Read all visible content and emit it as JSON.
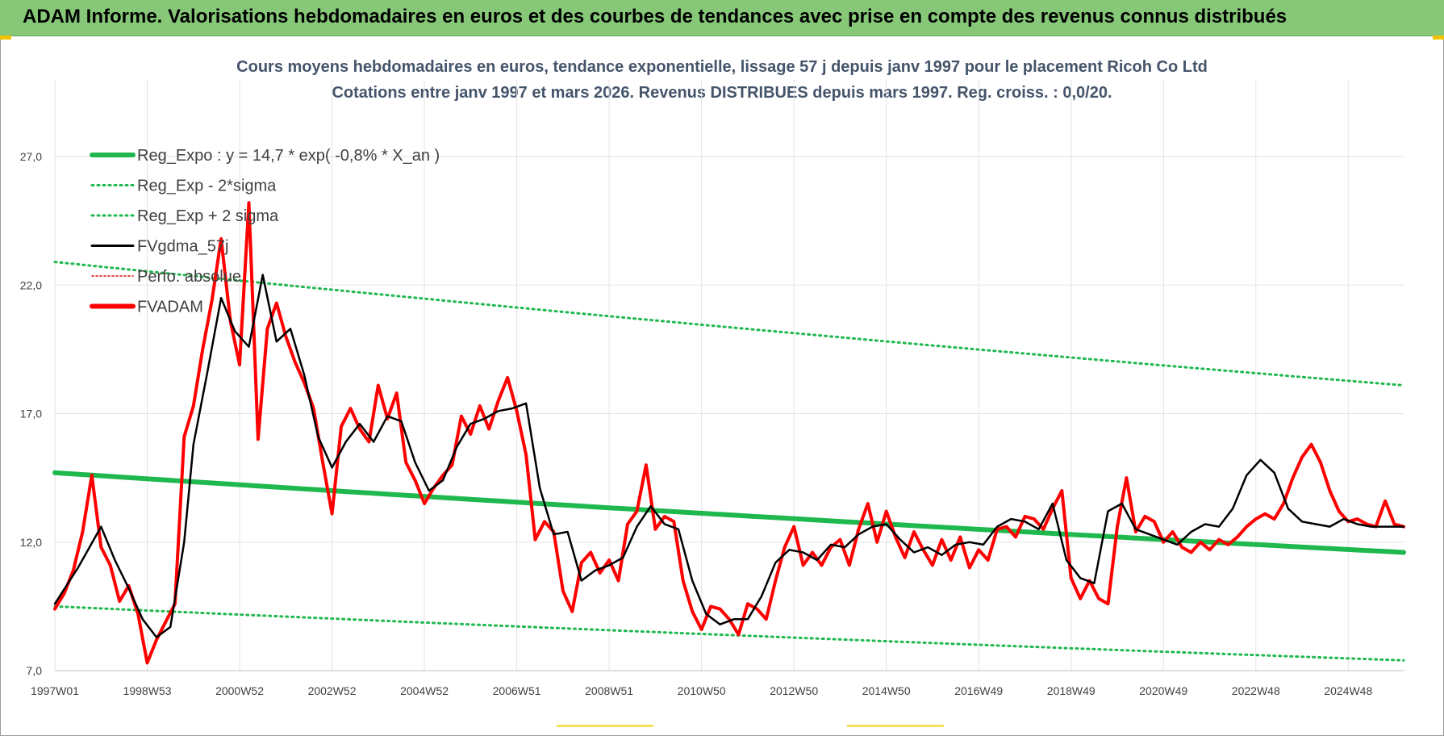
{
  "header": {
    "banner_title": "ADAM Informe. Valorisations hebdomadaires en euros et des courbes de tendances avec prise en compte des revenus connus distribués"
  },
  "chart_data": {
    "type": "line",
    "title_line1": "Cours moyens hebdomadaires en euros, tendance exponentielle, lissage 57 j depuis janv 1997  pour le placement Ricoh Co Ltd",
    "title_line2": "Cotations entre janv 1997 et mars 2026. Revenus DISTRIBUES depuis mars 1997.  Reg. croiss. : 0,0/20.",
    "xlabel": "",
    "ylabel": "",
    "ylim": [
      7.0,
      27.0
    ],
    "xlim": [
      1997.0,
      2026.2
    ],
    "y_ticks": [
      "7,0",
      "12,0",
      "17,0",
      "22,0",
      "27,0"
    ],
    "y_tick_values": [
      7,
      12,
      17,
      22,
      27
    ],
    "x_ticks": [
      "1997W01",
      "1998W53",
      "2000W52",
      "2002W52",
      "2004W52",
      "2006W51",
      "2008W51",
      "2010W50",
      "2012W50",
      "2014W50",
      "2016W49",
      "2018W49",
      "2020W49",
      "2022W48",
      "2024W48"
    ],
    "x_tick_values": [
      1997.0,
      1999.0,
      2001.0,
      2003.0,
      2005.0,
      2007.0,
      2009.0,
      2011.0,
      2013.0,
      2015.0,
      2017.0,
      2019.0,
      2021.0,
      2023.0,
      2025.0
    ],
    "grid": true,
    "legend_position": "top-left",
    "legend": [
      {
        "label": "Reg_Expo : y = 14,7 * exp( -0,8% *  X_an )",
        "color": "#1fb84e",
        "style": "solid-thick"
      },
      {
        "label": "Reg_Exp - 2*sigma",
        "color": "#1fb84e",
        "style": "dotted"
      },
      {
        "label": "Reg_Exp + 2 sigma",
        "color": "#1fb84e",
        "style": "dotted"
      },
      {
        "label": "FVgdma_57j",
        "color": "#000000",
        "style": "solid"
      },
      {
        "label": "Perfo. absolue",
        "color": "#e00000",
        "style": "dotted-thin"
      },
      {
        "label": "FVADAM",
        "color": "#ff0000",
        "style": "solid-thick"
      }
    ],
    "colors": {
      "regression": "#1fb84e",
      "smoothed": "#000000",
      "fvadam": "#ff0000",
      "grid": "#e3e3e3",
      "title": "#44546a"
    },
    "series": [
      {
        "name": "Reg_Expo : y = 14,7 * exp( -0,8% *  X_an )",
        "x": [
          1997.0,
          2026.2
        ],
        "y": [
          14.7,
          11.6
        ]
      },
      {
        "name": "Reg_Exp - 2*sigma",
        "x": [
          1997.0,
          2026.2
        ],
        "y": [
          9.5,
          7.4
        ]
      },
      {
        "name": "Reg_Exp + 2 sigma",
        "x": [
          1997.0,
          2026.2
        ],
        "y": [
          22.9,
          18.1
        ]
      },
      {
        "name": "FVgdma_57j",
        "x": [
          1997.0,
          1997.5,
          1998.0,
          1998.3,
          1998.6,
          1998.9,
          1999.2,
          1999.5,
          1999.8,
          2000.0,
          2000.3,
          2000.6,
          2000.9,
          2001.2,
          2001.5,
          2001.8,
          2002.1,
          2002.4,
          2002.7,
          2003.0,
          2003.3,
          2003.6,
          2003.9,
          2004.2,
          2004.5,
          2004.8,
          2005.1,
          2005.4,
          2005.7,
          2006.0,
          2006.3,
          2006.6,
          2006.9,
          2007.2,
          2007.5,
          2007.8,
          2008.1,
          2008.4,
          2008.7,
          2009.0,
          2009.3,
          2009.6,
          2009.9,
          2010.2,
          2010.5,
          2010.8,
          2011.1,
          2011.4,
          2011.7,
          2012.0,
          2012.3,
          2012.6,
          2012.9,
          2013.2,
          2013.5,
          2013.8,
          2014.1,
          2014.4,
          2014.7,
          2015.0,
          2015.3,
          2015.6,
          2015.9,
          2016.2,
          2016.5,
          2016.8,
          2017.1,
          2017.4,
          2017.7,
          2018.0,
          2018.3,
          2018.6,
          2018.9,
          2019.2,
          2019.5,
          2019.8,
          2020.1,
          2020.4,
          2020.7,
          2021.0,
          2021.3,
          2021.6,
          2021.9,
          2022.2,
          2022.5,
          2022.8,
          2023.1,
          2023.4,
          2023.7,
          2024.0,
          2024.3,
          2024.6,
          2024.9,
          2025.2,
          2025.5,
          2025.8,
          2026.2
        ],
        "y": [
          9.6,
          11.0,
          12.6,
          11.3,
          10.2,
          9.0,
          8.3,
          8.7,
          12.0,
          15.8,
          18.6,
          21.5,
          20.2,
          19.6,
          22.4,
          19.8,
          20.3,
          18.5,
          16.1,
          14.9,
          15.9,
          16.6,
          15.9,
          16.9,
          16.7,
          15.1,
          14.0,
          14.4,
          15.7,
          16.6,
          16.8,
          17.1,
          17.2,
          17.4,
          14.1,
          12.3,
          12.4,
          10.5,
          10.9,
          11.1,
          11.4,
          12.6,
          13.4,
          12.7,
          12.5,
          10.5,
          9.2,
          8.8,
          9.0,
          9.0,
          9.9,
          11.2,
          11.7,
          11.6,
          11.3,
          11.9,
          11.8,
          12.3,
          12.6,
          12.7,
          12.1,
          11.6,
          11.8,
          11.5,
          11.9,
          12.0,
          11.9,
          12.6,
          12.9,
          12.8,
          12.5,
          13.5,
          11.3,
          10.6,
          10.4,
          13.2,
          13.5,
          12.5,
          12.3,
          12.1,
          11.9,
          12.4,
          12.7,
          12.6,
          13.3,
          14.6,
          15.2,
          14.7,
          13.3,
          12.8,
          12.7,
          12.6,
          12.9,
          12.7,
          12.6,
          12.6,
          12.6
        ]
      },
      {
        "name": "FVADAM",
        "x": [
          1997.0,
          1997.2,
          1997.4,
          1997.6,
          1997.8,
          1998.0,
          1998.2,
          1998.4,
          1998.6,
          1998.8,
          1999.0,
          1999.2,
          1999.4,
          1999.6,
          1999.8,
          2000.0,
          2000.2,
          2000.4,
          2000.6,
          2000.8,
          2001.0,
          2001.2,
          2001.4,
          2001.6,
          2001.8,
          2002.0,
          2002.2,
          2002.4,
          2002.6,
          2002.8,
          2003.0,
          2003.2,
          2003.4,
          2003.6,
          2003.8,
          2004.0,
          2004.2,
          2004.4,
          2004.6,
          2004.8,
          2005.0,
          2005.2,
          2005.4,
          2005.6,
          2005.8,
          2006.0,
          2006.2,
          2006.4,
          2006.6,
          2006.8,
          2007.0,
          2007.2,
          2007.4,
          2007.6,
          2007.8,
          2008.0,
          2008.2,
          2008.4,
          2008.6,
          2008.8,
          2009.0,
          2009.2,
          2009.4,
          2009.6,
          2009.8,
          2010.0,
          2010.2,
          2010.4,
          2010.6,
          2010.8,
          2011.0,
          2011.2,
          2011.4,
          2011.6,
          2011.8,
          2012.0,
          2012.2,
          2012.4,
          2012.6,
          2012.8,
          2013.0,
          2013.2,
          2013.4,
          2013.6,
          2013.8,
          2014.0,
          2014.2,
          2014.4,
          2014.6,
          2014.8,
          2015.0,
          2015.2,
          2015.4,
          2015.6,
          2015.8,
          2016.0,
          2016.2,
          2016.4,
          2016.6,
          2016.8,
          2017.0,
          2017.2,
          2017.4,
          2017.6,
          2017.8,
          2018.0,
          2018.2,
          2018.4,
          2018.6,
          2018.8,
          2019.0,
          2019.2,
          2019.4,
          2019.6,
          2019.8,
          2020.0,
          2020.2,
          2020.4,
          2020.6,
          2020.8,
          2021.0,
          2021.2,
          2021.4,
          2021.6,
          2021.8,
          2022.0,
          2022.2,
          2022.4,
          2022.6,
          2022.8,
          2023.0,
          2023.2,
          2023.4,
          2023.6,
          2023.8,
          2024.0,
          2024.2,
          2024.4,
          2024.6,
          2024.8,
          2025.0,
          2025.2,
          2025.4,
          2025.6,
          2025.8,
          2026.0,
          2026.2
        ],
        "y": [
          9.4,
          10.0,
          10.9,
          12.4,
          14.6,
          11.8,
          11.1,
          9.7,
          10.3,
          9.2,
          7.3,
          8.2,
          8.9,
          9.6,
          16.1,
          17.3,
          19.5,
          21.4,
          23.8,
          20.6,
          18.9,
          25.2,
          16.0,
          20.3,
          21.3,
          20.0,
          19.0,
          18.2,
          17.2,
          15.1,
          13.1,
          16.5,
          17.2,
          16.4,
          15.9,
          18.1,
          16.8,
          17.8,
          15.1,
          14.4,
          13.5,
          14.1,
          14.6,
          15.0,
          16.9,
          16.2,
          17.3,
          16.4,
          17.5,
          18.4,
          17.1,
          15.4,
          12.1,
          12.8,
          12.4,
          10.1,
          9.3,
          11.2,
          11.6,
          10.8,
          11.3,
          10.5,
          12.7,
          13.2,
          15.0,
          12.5,
          13.0,
          12.8,
          10.5,
          9.3,
          8.6,
          9.5,
          9.4,
          9.0,
          8.4,
          9.6,
          9.4,
          9.0,
          10.5,
          11.8,
          12.6,
          11.1,
          11.6,
          11.1,
          11.8,
          12.1,
          11.1,
          12.5,
          13.5,
          12.0,
          13.2,
          12.2,
          11.4,
          12.4,
          11.7,
          11.1,
          12.1,
          11.3,
          12.2,
          11.0,
          11.7,
          11.3,
          12.5,
          12.6,
          12.2,
          13.0,
          12.9,
          12.5,
          13.3,
          14.0,
          10.6,
          9.8,
          10.5,
          9.8,
          9.6,
          12.6,
          14.5,
          12.4,
          13.0,
          12.8,
          12.0,
          12.4,
          11.8,
          11.6,
          12.0,
          11.7,
          12.1,
          11.9,
          12.2,
          12.6,
          12.9,
          13.1,
          12.9,
          13.5,
          14.5,
          15.3,
          15.8,
          15.1,
          14.0,
          13.2,
          12.8,
          12.9,
          12.7,
          12.6,
          13.6,
          12.7,
          12.6
        ]
      }
    ]
  }
}
